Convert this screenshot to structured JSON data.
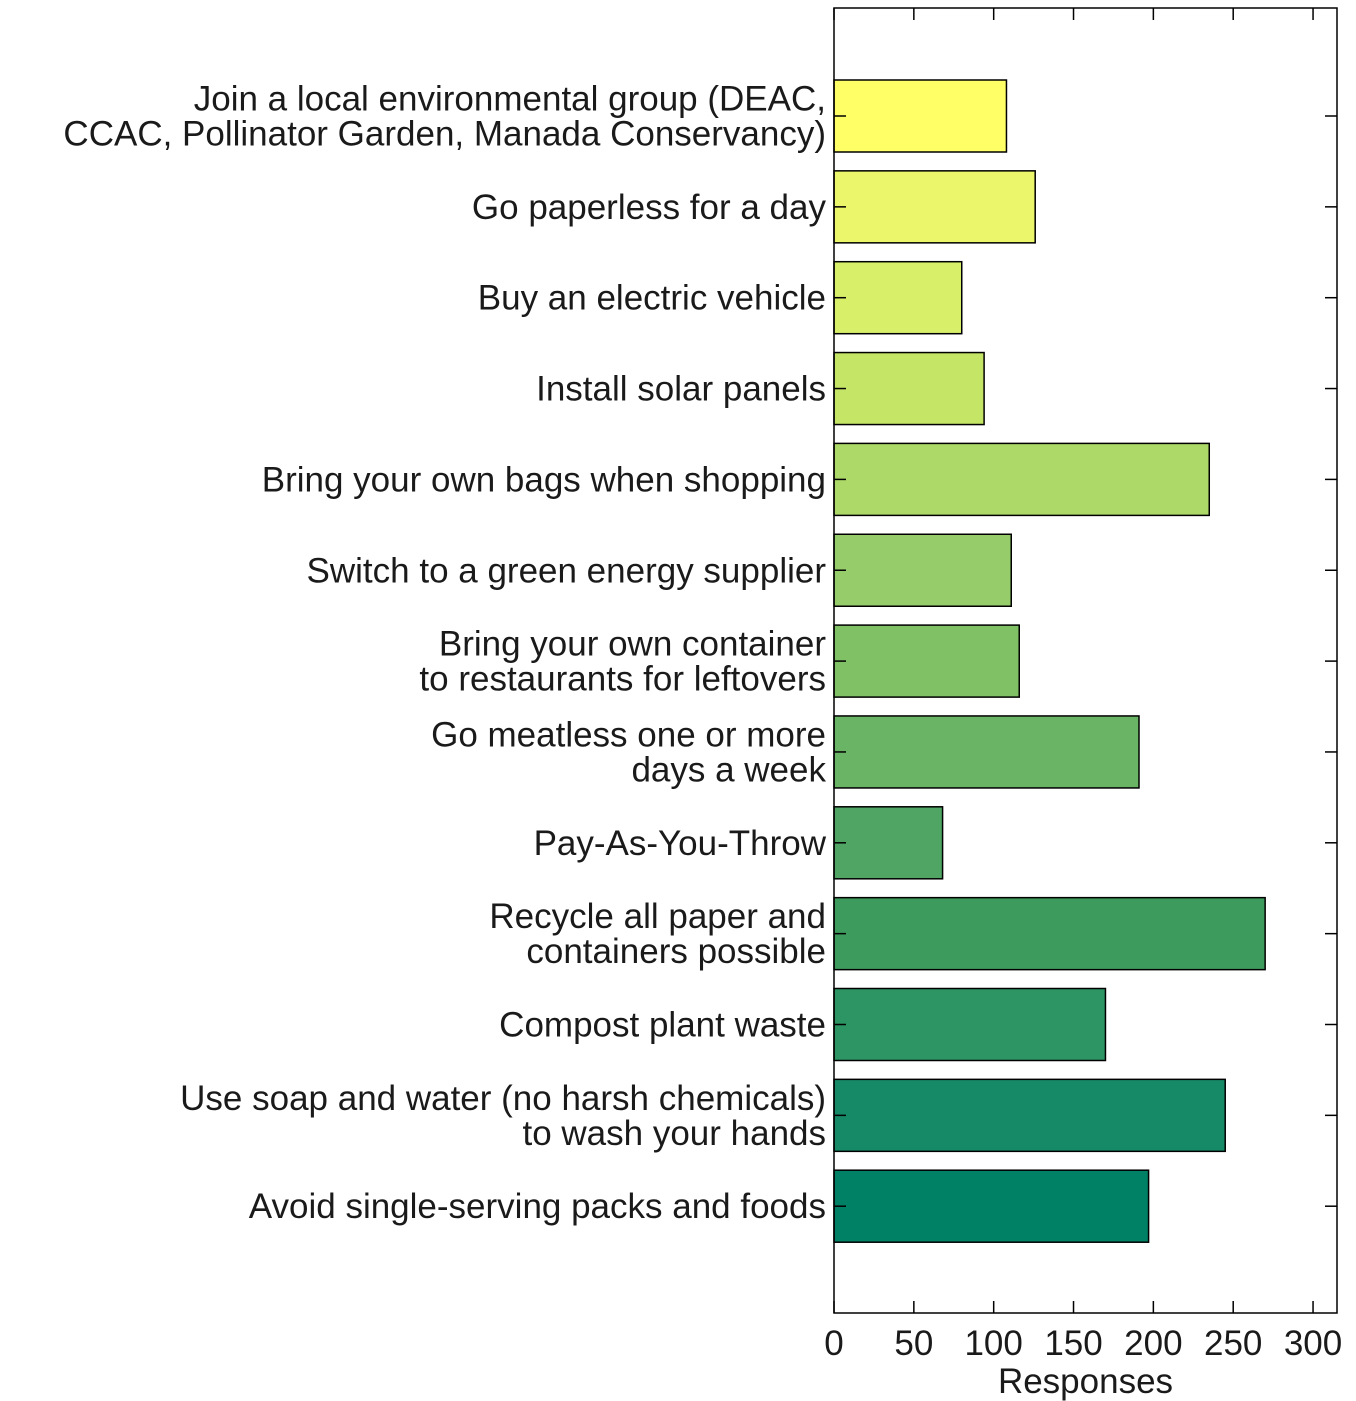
{
  "chart_data": {
    "type": "bar",
    "orientation": "horizontal",
    "title": "",
    "xlabel": "Responses",
    "ylabel": "",
    "xlim": [
      0,
      315
    ],
    "xticks": [
      0,
      50,
      100,
      150,
      200,
      250,
      300
    ],
    "grid": false,
    "legend": "none",
    "categories": [
      [
        "Join a local environmental group (DEAC,",
        "CCAC, Pollinator Garden, Manada Conservancy)"
      ],
      [
        "Go paperless for a day"
      ],
      [
        "Buy an electric vehicle"
      ],
      [
        "Install solar panels"
      ],
      [
        "Bring your own bags when shopping"
      ],
      [
        "Switch to a green energy supplier"
      ],
      [
        "Bring your own container",
        "to restaurants for leftovers"
      ],
      [
        "Go meatless one or more",
        "days a week"
      ],
      [
        "Pay-As-You-Throw"
      ],
      [
        "Recycle all paper and",
        "containers possible"
      ],
      [
        "Compost plant waste"
      ],
      [
        "Use soap and water (no harsh chemicals)",
        "to wash your hands"
      ],
      [
        "Avoid single-serving packs and foods"
      ]
    ],
    "values": [
      108,
      126,
      80,
      94,
      235,
      111,
      116,
      191,
      68,
      270,
      170,
      245,
      197
    ],
    "colors": [
      "#ffff66",
      "#ecf66a",
      "#d8ef69",
      "#c4e566",
      "#add968",
      "#96cc69",
      "#81c166",
      "#6ab466",
      "#50a564",
      "#3e9b5e",
      "#2d9563",
      "#168a66",
      "#008064"
    ]
  }
}
